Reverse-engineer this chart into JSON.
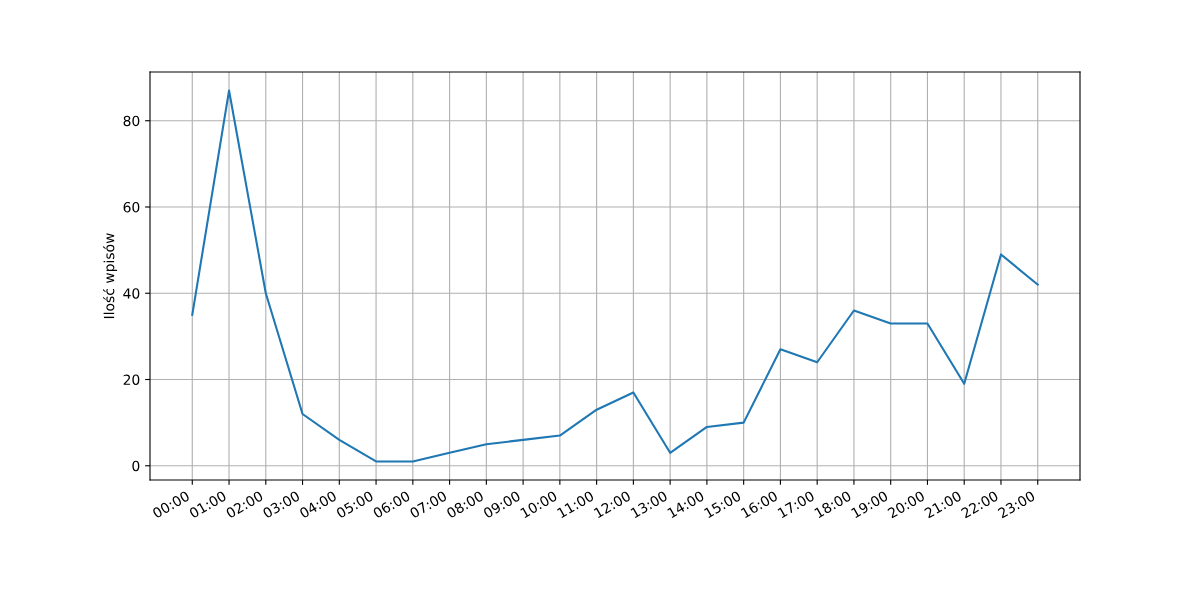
{
  "chart_data": {
    "type": "line",
    "ylabel": "Ilość wpisów",
    "categories": [
      "00:00",
      "01:00",
      "02:00",
      "03:00",
      "04:00",
      "05:00",
      "06:00",
      "07:00",
      "08:00",
      "09:00",
      "10:00",
      "11:00",
      "12:00",
      "13:00",
      "14:00",
      "15:00",
      "16:00",
      "17:00",
      "18:00",
      "19:00",
      "20:00",
      "21:00",
      "22:00",
      "23:00"
    ],
    "series": [
      {
        "color": "#1f77b4",
        "values": [
          35,
          87,
          40,
          12,
          6,
          1,
          1,
          3,
          5,
          6,
          7,
          13,
          17,
          3,
          9,
          10,
          27,
          24,
          36,
          33,
          33,
          19,
          49,
          42
        ]
      }
    ],
    "ylim": [
      -3.3,
      91.3
    ],
    "yticks": [
      0,
      20,
      40,
      60,
      80
    ],
    "grid": true
  }
}
